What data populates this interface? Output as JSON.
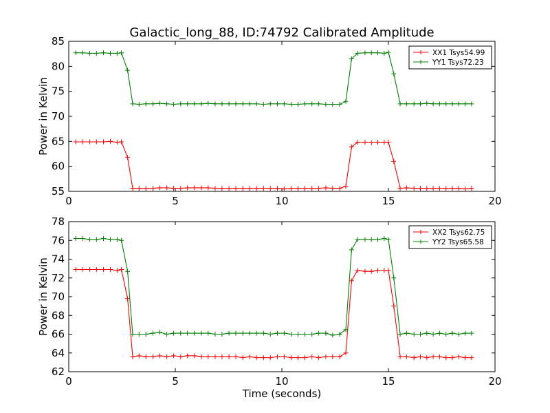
{
  "title": "Galactic_long_88, ID:74792 Calibrated Amplitude",
  "colors": {
    "XX": "#ff0000",
    "YY": "#008000"
  },
  "chart_data": [
    {
      "type": "line",
      "xlabel": "",
      "ylabel": "Power in Kelvin",
      "xlim": [
        0,
        20
      ],
      "ylim": [
        55,
        85
      ],
      "xticks": [
        "0",
        "5",
        "10",
        "15",
        "20"
      ],
      "yticks": [
        "55",
        "60",
        "65",
        "70",
        "75",
        "80",
        "85"
      ],
      "legend_position": "top-right",
      "grid": false,
      "x": [
        0.33,
        0.65,
        0.98,
        1.3,
        1.63,
        1.95,
        2.27,
        2.47,
        2.76,
        3.0,
        3.3,
        3.62,
        3.95,
        4.27,
        4.6,
        4.92,
        5.25,
        5.57,
        5.9,
        6.22,
        6.54,
        6.87,
        7.19,
        7.52,
        7.84,
        8.17,
        8.49,
        8.81,
        9.14,
        9.46,
        9.79,
        10.11,
        10.44,
        10.76,
        11.08,
        11.41,
        11.73,
        12.06,
        12.38,
        12.71,
        13.0,
        13.27,
        13.55,
        13.9,
        14.2,
        14.5,
        14.8,
        15.0,
        15.25,
        15.55,
        15.85,
        16.2,
        16.5,
        16.8,
        17.1,
        17.4,
        17.7,
        18.0,
        18.3,
        18.6,
        18.9
      ],
      "series": [
        {
          "name": "XX1 Tsys54.99",
          "color": "#ff0000",
          "values": [
            64.9,
            64.9,
            64.9,
            64.9,
            64.9,
            65.0,
            64.8,
            64.9,
            61.8,
            55.6,
            55.6,
            55.6,
            55.6,
            55.7,
            55.7,
            55.6,
            55.6,
            55.7,
            55.7,
            55.7,
            55.7,
            55.6,
            55.6,
            55.6,
            55.6,
            55.6,
            55.6,
            55.6,
            55.6,
            55.6,
            55.6,
            55.5,
            55.6,
            55.6,
            55.6,
            55.6,
            55.6,
            55.7,
            55.6,
            55.6,
            56.0,
            63.9,
            64.8,
            64.8,
            64.7,
            64.8,
            64.8,
            64.8,
            61.0,
            55.6,
            55.7,
            55.6,
            55.6,
            55.6,
            55.6,
            55.6,
            55.6,
            55.6,
            55.6,
            55.5,
            55.6
          ]
        },
        {
          "name": "YY1 Tsys72.23",
          "color": "#008000",
          "values": [
            82.7,
            82.7,
            82.6,
            82.6,
            82.7,
            82.6,
            82.6,
            82.7,
            79.2,
            72.5,
            72.4,
            72.5,
            72.5,
            72.6,
            72.5,
            72.4,
            72.5,
            72.5,
            72.5,
            72.5,
            72.6,
            72.5,
            72.5,
            72.5,
            72.5,
            72.5,
            72.5,
            72.5,
            72.4,
            72.5,
            72.5,
            72.5,
            72.4,
            72.4,
            72.5,
            72.5,
            72.5,
            72.4,
            72.4,
            72.4,
            73.0,
            81.5,
            82.6,
            82.7,
            82.7,
            82.7,
            82.6,
            82.8,
            78.5,
            72.5,
            72.5,
            72.5,
            72.5,
            72.6,
            72.5,
            72.5,
            72.5,
            72.5,
            72.5,
            72.5,
            72.5
          ]
        }
      ]
    },
    {
      "type": "line",
      "xlabel": "Time (seconds)",
      "ylabel": "Power in Kelvin",
      "xlim": [
        0,
        20
      ],
      "ylim": [
        62,
        78
      ],
      "xticks": [
        "0",
        "5",
        "10",
        "15",
        "20"
      ],
      "yticks": [
        "62",
        "64",
        "66",
        "68",
        "70",
        "72",
        "74",
        "76",
        "78"
      ],
      "legend_position": "top-right",
      "grid": false,
      "x": [
        0.33,
        0.65,
        0.98,
        1.3,
        1.63,
        1.95,
        2.27,
        2.47,
        2.76,
        3.0,
        3.3,
        3.62,
        3.95,
        4.27,
        4.6,
        4.92,
        5.25,
        5.57,
        5.9,
        6.22,
        6.54,
        6.87,
        7.19,
        7.52,
        7.84,
        8.17,
        8.49,
        8.81,
        9.14,
        9.46,
        9.79,
        10.11,
        10.44,
        10.76,
        11.08,
        11.41,
        11.73,
        12.06,
        12.38,
        12.71,
        13.0,
        13.27,
        13.55,
        13.9,
        14.2,
        14.5,
        14.8,
        15.0,
        15.25,
        15.55,
        15.85,
        16.2,
        16.5,
        16.8,
        17.1,
        17.4,
        17.7,
        18.0,
        18.3,
        18.6,
        18.9
      ],
      "series": [
        {
          "name": "XX2 Tsys62.75",
          "color": "#ff0000",
          "values": [
            72.9,
            72.9,
            72.9,
            72.9,
            72.9,
            72.9,
            72.8,
            72.9,
            69.8,
            63.6,
            63.7,
            63.6,
            63.6,
            63.7,
            63.6,
            63.7,
            63.6,
            63.7,
            63.7,
            63.6,
            63.6,
            63.6,
            63.6,
            63.6,
            63.6,
            63.5,
            63.6,
            63.5,
            63.5,
            63.5,
            63.6,
            63.6,
            63.5,
            63.5,
            63.5,
            63.6,
            63.5,
            63.6,
            63.6,
            63.6,
            64.0,
            71.7,
            72.8,
            72.7,
            72.7,
            72.8,
            72.8,
            72.8,
            69.0,
            63.6,
            63.6,
            63.5,
            63.6,
            63.5,
            63.6,
            63.6,
            63.5,
            63.5,
            63.6,
            63.5,
            63.5
          ]
        },
        {
          "name": "YY2 Tsys65.58",
          "color": "#008000",
          "values": [
            76.2,
            76.2,
            76.1,
            76.1,
            76.2,
            76.1,
            76.1,
            76.0,
            72.7,
            66.0,
            66.0,
            66.0,
            66.1,
            66.2,
            66.0,
            66.1,
            66.1,
            66.1,
            66.1,
            66.1,
            66.1,
            66.0,
            66.0,
            66.1,
            66.1,
            66.1,
            66.1,
            66.1,
            66.1,
            66.0,
            66.1,
            66.1,
            66.0,
            66.0,
            66.0,
            66.0,
            66.1,
            66.1,
            65.9,
            66.0,
            66.5,
            75.0,
            76.1,
            76.1,
            76.1,
            76.1,
            76.2,
            76.1,
            72.0,
            66.0,
            66.1,
            66.0,
            66.0,
            66.1,
            66.0,
            66.1,
            66.0,
            66.1,
            66.0,
            66.1,
            66.1
          ]
        }
      ]
    }
  ]
}
